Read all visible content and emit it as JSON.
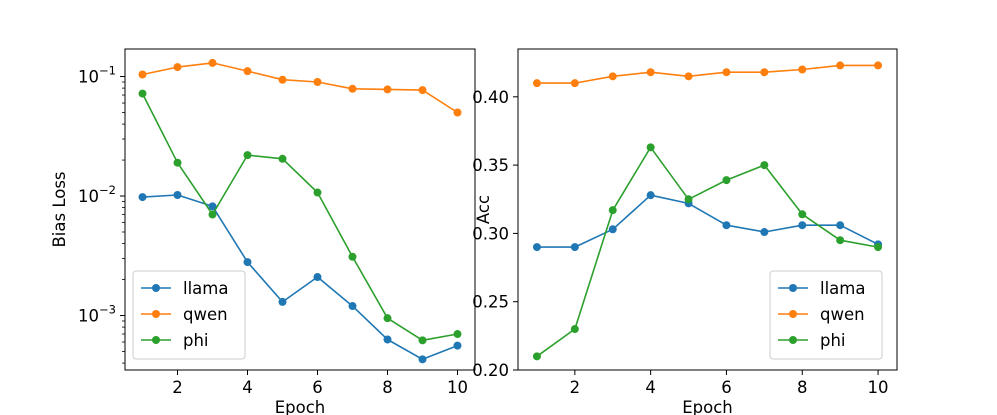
{
  "colors": {
    "llama": "#1f77b4",
    "qwen": "#ff7f0e",
    "phi": "#2ca02c"
  },
  "chart_data": [
    {
      "type": "line",
      "title": "",
      "xlabel": "Epoch",
      "ylabel": "Bias Loss",
      "yscale": "log",
      "x": [
        1,
        2,
        3,
        4,
        5,
        6,
        7,
        8,
        9,
        10
      ],
      "xlim": [
        0.5,
        10.5
      ],
      "ylim": [
        0.00035,
        0.17
      ],
      "xticks": [
        2,
        4,
        6,
        8,
        10
      ],
      "yticks": [
        0.001,
        0.01,
        0.1
      ],
      "ytick_labels": [
        {
          "base": "10",
          "exp": "−3"
        },
        {
          "base": "10",
          "exp": "−2"
        },
        {
          "base": "10",
          "exp": "−1"
        }
      ],
      "grid": false,
      "legend_position": "lower-left",
      "series": [
        {
          "name": "llama",
          "values": [
            0.0098,
            0.0102,
            0.0082,
            0.0028,
            0.0013,
            0.0021,
            0.0012,
            0.00063,
            0.00043,
            0.00056
          ]
        },
        {
          "name": "qwen",
          "values": [
            0.104,
            0.12,
            0.13,
            0.111,
            0.094,
            0.09,
            0.079,
            0.078,
            0.077,
            0.05
          ]
        },
        {
          "name": "phi",
          "values": [
            0.072,
            0.019,
            0.007,
            0.022,
            0.0205,
            0.0107,
            0.0031,
            0.00095,
            0.00062,
            0.0007
          ]
        }
      ]
    },
    {
      "type": "line",
      "title": "",
      "xlabel": "Epoch",
      "ylabel": "Acc",
      "yscale": "linear",
      "x": [
        1,
        2,
        3,
        4,
        5,
        6,
        7,
        8,
        9,
        10
      ],
      "xlim": [
        0.5,
        10.5
      ],
      "ylim": [
        0.2,
        0.435
      ],
      "xticks": [
        2,
        4,
        6,
        8,
        10
      ],
      "yticks": [
        0.2,
        0.25,
        0.3,
        0.35,
        0.4
      ],
      "ytick_labels": [
        "0.20",
        "0.25",
        "0.30",
        "0.35",
        "0.40"
      ],
      "grid": false,
      "legend_position": "lower-right",
      "series": [
        {
          "name": "llama",
          "values": [
            0.29,
            0.29,
            0.303,
            0.328,
            0.322,
            0.306,
            0.301,
            0.306,
            0.306,
            0.292
          ]
        },
        {
          "name": "qwen",
          "values": [
            0.41,
            0.41,
            0.415,
            0.418,
            0.415,
            0.418,
            0.418,
            0.42,
            0.423,
            0.423
          ]
        },
        {
          "name": "phi",
          "values": [
            0.21,
            0.23,
            0.317,
            0.363,
            0.325,
            0.339,
            0.35,
            0.314,
            0.295,
            0.29
          ]
        }
      ]
    }
  ]
}
